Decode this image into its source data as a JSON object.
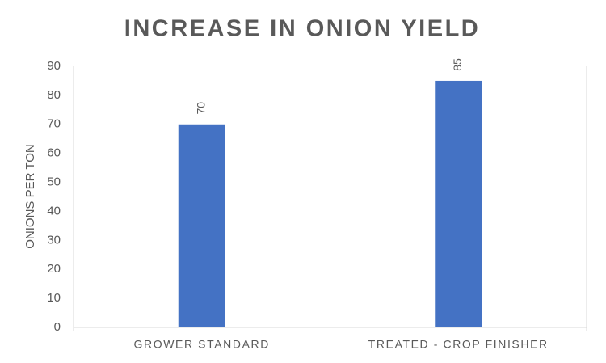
{
  "chart_data": {
    "type": "bar",
    "title": "INCREASE IN ONION YIELD",
    "y_label": "ONIONS PER TON",
    "categories": [
      "GROWER STANDARD",
      "TREATED - CROP FINISHER"
    ],
    "values": [
      70,
      85
    ],
    "color": "#4472c4",
    "ylim": [
      0,
      90
    ],
    "yticks": [
      0,
      10,
      20,
      30,
      40,
      50,
      60,
      70,
      80,
      90
    ],
    "grid": false,
    "data_labels": true
  }
}
